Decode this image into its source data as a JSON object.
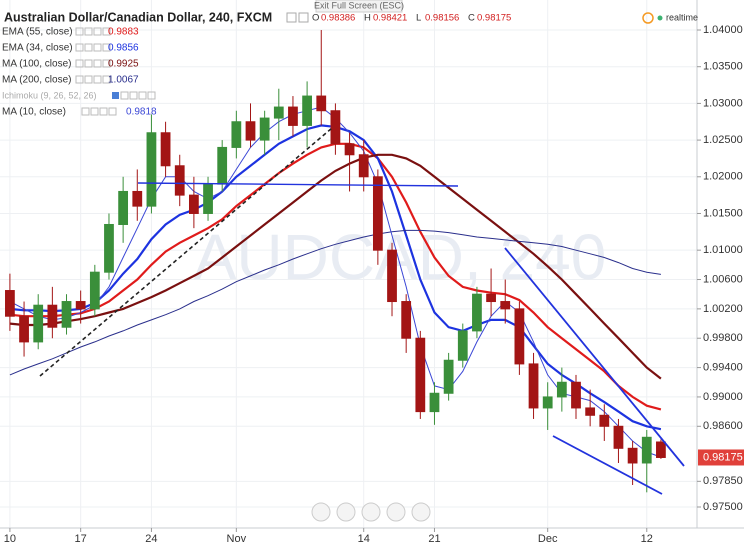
{
  "chart_data": {
    "type": "candlestick",
    "title": "Australian Dollar/Canadian Dollar, 240, FXCM",
    "fullscreen_hint": "Exit Full Screen (ESC)",
    "status": "realtime",
    "watermark": "AUDCAD, 240",
    "ohlc_letters": [
      "O",
      "H",
      "L",
      "C"
    ],
    "ichimoku_label": "Ichimoku (9, 26, 52, 26)",
    "up_color": "#3a8f3a",
    "down_color": "#a31515",
    "grid": true,
    "x": [
      0,
      1,
      2,
      3,
      4,
      5,
      6,
      7,
      8,
      9,
      10,
      11,
      12,
      13,
      14,
      15,
      16,
      17,
      18,
      19,
      20,
      21,
      22,
      23,
      24,
      25,
      26,
      27,
      28,
      29,
      30,
      31,
      32,
      33,
      34,
      35,
      36,
      37,
      38,
      39,
      40,
      41,
      42,
      43,
      44,
      45,
      46
    ],
    "open": [
      1.0045,
      1.001,
      0.9975,
      1.0025,
      0.9995,
      1.003,
      1.002,
      1.007,
      1.0135,
      1.018,
      1.016,
      1.026,
      1.0215,
      1.0175,
      1.015,
      1.019,
      1.024,
      1.0275,
      1.025,
      1.028,
      1.0295,
      1.027,
      1.031,
      1.029,
      1.0245,
      1.023,
      1.02,
      1.01,
      1.003,
      0.998,
      0.988,
      0.9905,
      0.995,
      0.999,
      1.004,
      1.003,
      1.002,
      0.9945,
      0.9885,
      0.99,
      0.992,
      0.9885,
      0.9875,
      0.986,
      0.983,
      0.981,
      0.98386
    ],
    "high": [
      1.0068,
      1.003,
      1.004,
      1.005,
      1.004,
      1.0045,
      1.008,
      1.015,
      1.02,
      1.021,
      1.0285,
      1.0275,
      1.023,
      1.02,
      1.02,
      1.025,
      1.029,
      1.03,
      1.029,
      1.032,
      1.031,
      1.033,
      1.04,
      1.03,
      1.026,
      1.025,
      1.021,
      1.011,
      1.004,
      0.999,
      0.992,
      0.996,
      1.0,
      1.005,
      1.0075,
      1.006,
      1.003,
      0.996,
      0.992,
      0.994,
      0.993,
      0.991,
      0.989,
      0.987,
      0.984,
      0.9855,
      0.98421
    ],
    "low": [
      0.999,
      0.9955,
      0.9965,
      0.998,
      0.9985,
      1.0,
      1.001,
      1.006,
      1.011,
      1.014,
      1.015,
      1.02,
      1.016,
      1.013,
      1.014,
      1.018,
      1.0225,
      1.024,
      1.023,
      1.025,
      1.0255,
      1.024,
      1.027,
      1.023,
      1.018,
      1.018,
      1.008,
      1.001,
      0.996,
      0.987,
      0.9862,
      0.9895,
      0.994,
      0.998,
      1.001,
      1.0,
      0.993,
      0.987,
      0.9855,
      0.988,
      0.987,
      0.986,
      0.984,
      0.981,
      0.978,
      0.977,
      0.98156
    ],
    "close": [
      1.001,
      0.9975,
      1.0025,
      0.9995,
      1.003,
      1.002,
      1.007,
      1.0135,
      1.018,
      1.016,
      1.026,
      1.0215,
      1.0175,
      1.015,
      1.019,
      1.024,
      1.0275,
      1.025,
      1.028,
      1.0295,
      1.027,
      1.031,
      1.029,
      1.0245,
      1.023,
      1.02,
      1.01,
      1.003,
      0.998,
      0.988,
      0.9905,
      0.995,
      0.999,
      1.004,
      1.003,
      1.002,
      0.9945,
      0.9885,
      0.99,
      0.992,
      0.9885,
      0.9875,
      0.986,
      0.983,
      0.981,
      0.9845,
      0.98175
    ],
    "series": [
      {
        "name": "EMA (55, close)",
        "color": "#e01b1b",
        "width": 2.2,
        "values": [
          1.0012,
          1.001,
          1.001,
          1.001,
          1.0012,
          1.0014,
          1.002,
          1.003,
          1.0045,
          1.006,
          1.008,
          1.0098,
          1.011,
          1.012,
          1.013,
          1.0142,
          1.016,
          1.0175,
          1.019,
          1.0205,
          1.0218,
          1.023,
          1.024,
          1.0245,
          1.0245,
          1.024,
          1.0225,
          1.02,
          1.0165,
          1.0125,
          1.009,
          1.0065,
          1.005,
          1.0045,
          1.0042,
          1.004,
          1.0032,
          1.0015,
          0.9995,
          0.998,
          0.9965,
          0.995,
          0.9935,
          0.9915,
          0.99,
          0.9888,
          0.9883
        ]
      },
      {
        "name": "EMA (34, close)",
        "color": "#1d33e0",
        "width": 2.2,
        "values": [
          1.002,
          1.0018,
          1.0018,
          1.0017,
          1.0018,
          1.002,
          1.0028,
          1.0045,
          1.0068,
          1.0088,
          1.0115,
          1.0135,
          1.0148,
          1.0155,
          1.0165,
          1.018,
          1.02,
          1.0215,
          1.023,
          1.0245,
          1.0255,
          1.0265,
          1.027,
          1.0268,
          1.0262,
          1.025,
          1.0225,
          1.018,
          1.012,
          1.006,
          1.0015,
          0.9995,
          0.999,
          0.9998,
          1.0005,
          1.0005,
          0.9995,
          0.997,
          0.9945,
          0.993,
          0.9918,
          0.9905,
          0.9893,
          0.988,
          0.9867,
          0.986,
          0.9856
        ]
      },
      {
        "name": "MA (100, close)",
        "color": "#7a1010",
        "width": 2.2,
        "values": [
          1.0,
          0.9998,
          0.9998,
          1.0,
          1.0003,
          1.0006,
          1.001,
          1.0015,
          1.002,
          1.0028,
          1.0036,
          1.0045,
          1.0055,
          1.0065,
          1.0075,
          1.009,
          1.0105,
          1.012,
          1.0135,
          1.015,
          1.0165,
          1.018,
          1.0195,
          1.0208,
          1.0218,
          1.0226,
          1.023,
          1.023,
          1.0225,
          1.0215,
          1.02,
          1.0185,
          1.017,
          1.0155,
          1.014,
          1.0125,
          1.011,
          1.0095,
          1.0078,
          1.006,
          1.004,
          1.002,
          1.0,
          0.998,
          0.996,
          0.994,
          0.9925
        ]
      },
      {
        "name": "MA (200, close)",
        "color": "#2a2f8c",
        "width": 1,
        "values": [
          0.993,
          0.9938,
          0.9945,
          0.9952,
          0.996,
          0.9968,
          0.9975,
          0.9983,
          0.999,
          0.9998,
          1.0005,
          1.0012,
          1.002,
          1.003,
          1.0038,
          1.0047,
          1.0057,
          1.0065,
          1.0073,
          1.008,
          1.0088,
          1.0095,
          1.0102,
          1.0108,
          1.0113,
          1.0118,
          1.0122,
          1.0125,
          1.0127,
          1.0127,
          1.0126,
          1.0124,
          1.0121,
          1.0118,
          1.0116,
          1.0114,
          1.0112,
          1.011,
          1.0108,
          1.0105,
          1.01,
          1.0095,
          1.009,
          1.0083,
          1.0075,
          1.007,
          1.0067
        ]
      },
      {
        "name": "MA (10, close)",
        "color": "#3b47d6",
        "width": 1,
        "values": [
          1.003,
          1.002,
          1.001,
          1.0005,
          1.0008,
          1.0015,
          1.0025,
          1.005,
          1.009,
          1.013,
          1.017,
          1.02,
          1.02,
          1.018,
          1.017,
          1.018,
          1.021,
          1.024,
          1.026,
          1.0275,
          1.0285,
          1.029,
          1.0295,
          1.028,
          1.026,
          1.0235,
          1.019,
          1.012,
          1.005,
          0.997,
          0.9915,
          0.991,
          0.9935,
          0.9975,
          1.001,
          1.003,
          1.0015,
          0.9975,
          0.993,
          0.9905,
          0.99,
          0.9895,
          0.988,
          0.986,
          0.984,
          0.9825,
          0.9818
        ]
      }
    ],
    "xlim": [
      -0.7,
      48.55
    ],
    "xticks": [
      {
        "value": 0,
        "label": "10"
      },
      {
        "value": 5,
        "label": "17"
      },
      {
        "value": 10,
        "label": "24"
      },
      {
        "value": 16,
        "label": "Nov"
      },
      {
        "value": 25,
        "label": "14"
      },
      {
        "value": 30,
        "label": "21"
      },
      {
        "value": 38,
        "label": "Dec"
      },
      {
        "value": 45,
        "label": "12"
      }
    ],
    "ylim": [
      0.97214,
      1.04409
    ],
    "yticks": [
      {
        "value": 1.04,
        "label": "1.04000"
      },
      {
        "value": 1.035,
        "label": "1.03500"
      },
      {
        "value": 1.03,
        "label": "1.03000"
      },
      {
        "value": 1.025,
        "label": "1.02500"
      },
      {
        "value": 1.02,
        "label": "1.02000"
      },
      {
        "value": 1.015,
        "label": "1.01500"
      },
      {
        "value": 1.01,
        "label": "1.01000"
      },
      {
        "value": 1.006,
        "label": "1.00600"
      },
      {
        "value": 1.002,
        "label": "1.00200"
      },
      {
        "value": 0.998,
        "label": "0.99800"
      },
      {
        "value": 0.994,
        "label": "0.99400"
      },
      {
        "value": 0.99,
        "label": "0.99000"
      },
      {
        "value": 0.986,
        "label": "0.98600"
      },
      {
        "value": 0.9785,
        "label": "0.97850"
      },
      {
        "value": 0.975,
        "label": "0.97500"
      }
    ]
  }
}
